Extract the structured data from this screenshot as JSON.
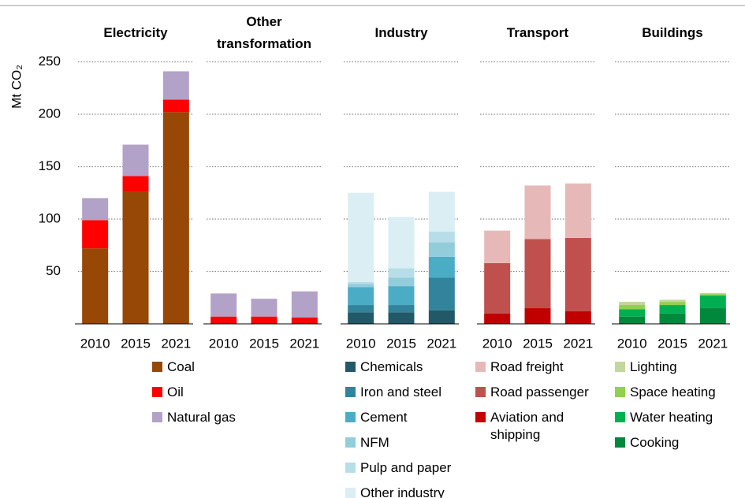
{
  "chart_data": [
    {
      "type": "bar",
      "stacked": true,
      "title": "Electricity",
      "ylabel": "Mt CO₂",
      "show_ytick_labels": true,
      "categories": [
        "2010",
        "2015",
        "2021"
      ],
      "series": [
        {
          "name": "Coal",
          "color": "#974706",
          "values": [
            72,
            126,
            202
          ]
        },
        {
          "name": "Oil",
          "color": "#ff0000",
          "values": [
            27,
            15,
            12
          ]
        },
        {
          "name": "Natural gas",
          "color": "#b3a2c7",
          "values": [
            21,
            30,
            27
          ]
        }
      ],
      "ylim": [
        0,
        300
      ],
      "yticks": [
        50,
        100,
        150,
        200,
        250
      ],
      "grid": true
    },
    {
      "type": "bar",
      "stacked": true,
      "title": "Other transformation",
      "categories": [
        "2010",
        "2015",
        "2021"
      ],
      "series": [
        {
          "color": "#ff0000",
          "values": [
            7,
            7,
            6
          ]
        },
        {
          "color": "#b3a2c7",
          "values": [
            22,
            17,
            25
          ]
        }
      ],
      "ylim": [
        0,
        300
      ],
      "yticks": [
        50,
        100,
        150,
        200,
        250
      ],
      "grid": true
    },
    {
      "type": "bar",
      "stacked": true,
      "title": "Industry",
      "categories": [
        "2010",
        "2015",
        "2021"
      ],
      "series": [
        {
          "name": "Chemicals",
          "color": "#215968",
          "values": [
            11,
            11,
            13
          ]
        },
        {
          "name": "Iron and steel",
          "color": "#31849b",
          "values": [
            7,
            7,
            31
          ]
        },
        {
          "name": "Cement",
          "color": "#4bacc6",
          "values": [
            17,
            18,
            20
          ]
        },
        {
          "name": "NFM",
          "color": "#92cddc",
          "values": [
            3,
            8,
            14
          ]
        },
        {
          "name": "Pulp and paper",
          "color": "#b7dee8",
          "values": [
            2,
            9,
            10
          ]
        },
        {
          "name": "Other industry",
          "color": "#daeef3",
          "values": [
            85,
            49,
            38
          ]
        }
      ],
      "ylim": [
        0,
        300
      ],
      "yticks": [
        50,
        100,
        150,
        200,
        250
      ],
      "grid": true
    },
    {
      "type": "bar",
      "stacked": true,
      "title": "Transport",
      "legend_reverse": true,
      "categories": [
        "2010",
        "2015",
        "2021"
      ],
      "series": [
        {
          "name": "Aviation and shipping",
          "color": "#c00000",
          "values": [
            10,
            15,
            12
          ]
        },
        {
          "name": "Road passenger",
          "color": "#c0504d",
          "values": [
            48,
            66,
            70
          ]
        },
        {
          "name": "Road freight",
          "color": "#e6b9b8",
          "values": [
            31,
            51,
            52
          ]
        }
      ],
      "ylim": [
        0,
        300
      ],
      "yticks": [
        50,
        100,
        150,
        200,
        250
      ],
      "grid": true
    },
    {
      "type": "bar",
      "stacked": true,
      "title": "Buildings",
      "legend_reverse": true,
      "categories": [
        "2010",
        "2015",
        "2021"
      ],
      "series": [
        {
          "name": "Cooking",
          "color": "#00883c",
          "values": [
            7,
            10,
            15
          ]
        },
        {
          "name": "Water heating",
          "color": "#00b050",
          "values": [
            7,
            8,
            12
          ]
        },
        {
          "name": "Space heating",
          "color": "#92d050",
          "values": [
            4,
            3,
            1.5
          ]
        },
        {
          "name": "Lighting",
          "color": "#c3d69b",
          "values": [
            3,
            2,
            1
          ]
        }
      ],
      "ylim": [
        0,
        300
      ],
      "yticks": [
        50,
        100,
        150,
        200,
        250
      ],
      "grid": true
    }
  ]
}
